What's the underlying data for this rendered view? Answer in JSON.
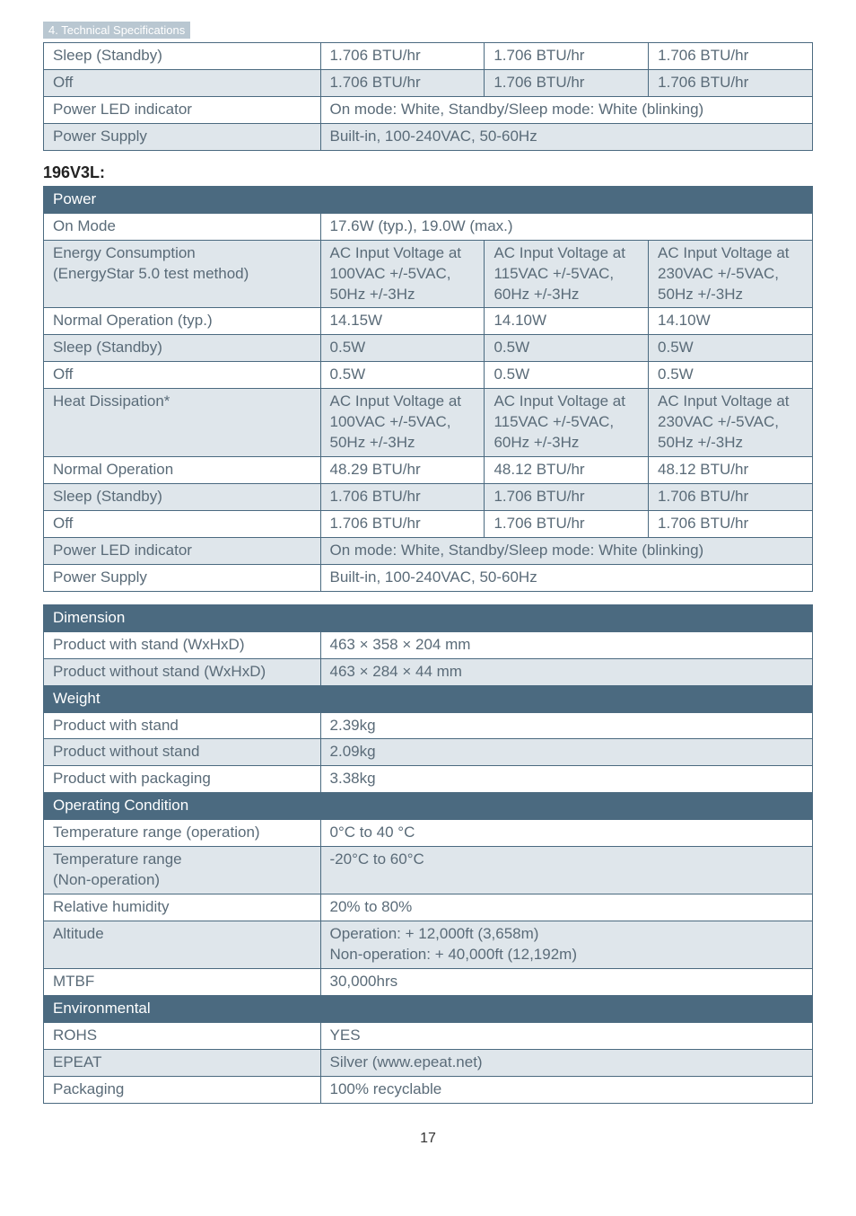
{
  "section_tag": "4. Technical Specifications",
  "table1": {
    "rows": [
      {
        "alt": false,
        "cells": [
          "Sleep (Standby)",
          "1.706 BTU/hr",
          "1.706 BTU/hr",
          "1.706 BTU/hr"
        ]
      },
      {
        "alt": true,
        "cells": [
          "Off",
          "1.706 BTU/hr",
          "1.706 BTU/hr",
          "1.706 BTU/hr"
        ]
      },
      {
        "alt": false,
        "cells": [
          "Power LED indicator",
          "On mode: White, Standby/Sleep mode: White (blinking)"
        ],
        "spans": [
          1,
          3
        ]
      },
      {
        "alt": true,
        "cells": [
          "Power Supply",
          "Built-in, 100-240VAC, 50-60Hz"
        ],
        "spans": [
          1,
          3
        ]
      }
    ]
  },
  "model_label": "196V3L:",
  "table2": {
    "header": "Power",
    "rows": [
      {
        "alt": false,
        "cells": [
          "On Mode",
          "17.6W (typ.), 19.0W (max.)"
        ],
        "spans": [
          1,
          3
        ]
      },
      {
        "alt": true,
        "cells": [
          "Energy Consumption\n(EnergyStar 5.0 test method)",
          "AC Input Voltage at 100VAC +/-5VAC, 50Hz +/-3Hz",
          "AC Input Voltage at 115VAC +/-5VAC, 60Hz +/-3Hz",
          "AC Input Voltage at 230VAC +/-5VAC, 50Hz +/-3Hz"
        ]
      },
      {
        "alt": false,
        "cells": [
          "Normal Operation (typ.)",
          "14.15W",
          "14.10W",
          "14.10W"
        ]
      },
      {
        "alt": true,
        "cells": [
          "Sleep (Standby)",
          "0.5W",
          "0.5W",
          "0.5W"
        ]
      },
      {
        "alt": false,
        "cells": [
          "Off",
          "0.5W",
          "0.5W",
          "0.5W"
        ]
      },
      {
        "alt": true,
        "cells": [
          "Heat Dissipation*",
          "AC Input Voltage at 100VAC +/-5VAC, 50Hz +/-3Hz",
          "AC Input Voltage at 115VAC +/-5VAC, 60Hz +/-3Hz",
          "AC Input Voltage at 230VAC +/-5VAC, 50Hz +/-3Hz"
        ]
      },
      {
        "alt": false,
        "cells": [
          "Normal Operation",
          "48.29 BTU/hr",
          "48.12 BTU/hr",
          "48.12 BTU/hr"
        ]
      },
      {
        "alt": true,
        "cells": [
          "Sleep (Standby)",
          "1.706 BTU/hr",
          "1.706 BTU/hr",
          "1.706 BTU/hr"
        ]
      },
      {
        "alt": false,
        "cells": [
          "Off",
          "1.706 BTU/hr",
          "1.706 BTU/hr",
          "1.706 BTU/hr"
        ]
      },
      {
        "alt": true,
        "cells": [
          "Power LED indicator",
          "On mode: White, Standby/Sleep mode: White (blinking)"
        ],
        "spans": [
          1,
          3
        ]
      },
      {
        "alt": false,
        "cells": [
          "Power Supply",
          "Built-in, 100-240VAC, 50-60Hz"
        ],
        "spans": [
          1,
          3
        ]
      }
    ]
  },
  "table3": {
    "sections": [
      {
        "header": "Dimension",
        "rows": [
          {
            "alt": false,
            "cells": [
              "Product with stand (WxHxD)",
              "463 × 358 × 204 mm"
            ]
          },
          {
            "alt": true,
            "cells": [
              "Product without stand (WxHxD)",
              "463 × 284 × 44 mm"
            ]
          }
        ]
      },
      {
        "header": "Weight",
        "rows": [
          {
            "alt": false,
            "cells": [
              "Product with stand",
              "2.39kg"
            ]
          },
          {
            "alt": true,
            "cells": [
              "Product without stand",
              "2.09kg"
            ]
          },
          {
            "alt": false,
            "cells": [
              "Product with packaging",
              "3.38kg"
            ]
          }
        ]
      },
      {
        "header": "Operating Condition",
        "rows": [
          {
            "alt": false,
            "cells": [
              "Temperature range (operation)",
              "0°C to 40 °C"
            ]
          },
          {
            "alt": true,
            "cells": [
              "Temperature range\n(Non-operation)",
              "-20°C to 60°C"
            ]
          },
          {
            "alt": false,
            "cells": [
              "Relative humidity",
              "20% to 80%"
            ]
          },
          {
            "alt": true,
            "cells": [
              "Altitude",
              "Operation: + 12,000ft (3,658m)\nNon-operation: + 40,000ft (12,192m)"
            ]
          },
          {
            "alt": false,
            "cells": [
              "MTBF",
              "30,000hrs"
            ]
          }
        ]
      },
      {
        "header": "Environmental",
        "rows": [
          {
            "alt": false,
            "cells": [
              "ROHS",
              "YES"
            ]
          },
          {
            "alt": true,
            "cells": [
              "EPEAT",
              "Silver (www.epeat.net)"
            ]
          },
          {
            "alt": false,
            "cells": [
              "Packaging",
              "100% recyclable"
            ]
          }
        ]
      }
    ]
  },
  "page_number": "17",
  "colors": {
    "header_bg": "#4b6a80",
    "alt_bg": "#dfe6eb",
    "text": "#5a6b78",
    "border": "#4b6a80"
  }
}
